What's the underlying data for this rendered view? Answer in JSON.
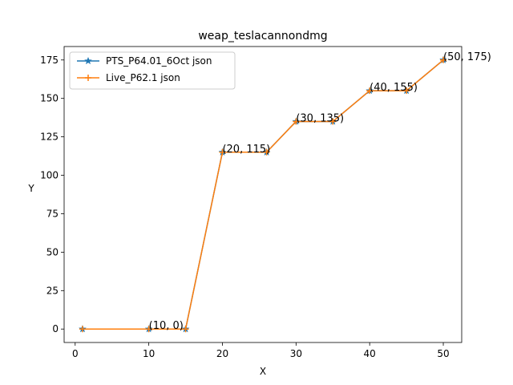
{
  "chart_data": {
    "type": "line",
    "title": "weap_teslacannondmg",
    "xlabel": "X",
    "ylabel": "Y",
    "xlim": [
      -1.5,
      52.5
    ],
    "ylim": [
      -8.75,
      183.75
    ],
    "xticks": [
      0,
      10,
      20,
      30,
      40,
      50
    ],
    "yticks": [
      0,
      25,
      50,
      75,
      100,
      125,
      150,
      175
    ],
    "grid": false,
    "legend_position": "upper-left",
    "x": [
      1,
      10,
      15,
      20,
      26,
      30,
      35,
      40,
      45,
      50
    ],
    "series": [
      {
        "name": "PTS_P64.01_6Oct json",
        "color": "#1f77b4",
        "marker": "star",
        "values": [
          0,
          0,
          0,
          115,
          115,
          135,
          135,
          155,
          155,
          175
        ]
      },
      {
        "name": "Live_P62.1 json",
        "color": "#ff7f0e",
        "marker": "plus",
        "values": [
          0,
          0,
          0,
          115,
          115,
          135,
          135,
          155,
          155,
          175
        ]
      }
    ],
    "annotations": [
      {
        "x": 10,
        "y": 0,
        "text": "(10, 0)"
      },
      {
        "x": 20,
        "y": 115,
        "text": "(20, 115)"
      },
      {
        "x": 30,
        "y": 135,
        "text": "(30, 135)"
      },
      {
        "x": 40,
        "y": 155,
        "text": "(40, 155)"
      },
      {
        "x": 50,
        "y": 175,
        "text": "(50, 175)"
      }
    ]
  }
}
